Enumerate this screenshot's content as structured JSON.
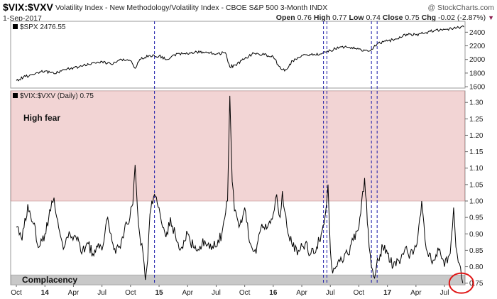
{
  "header": {
    "ticker": "$VIX:$VXV",
    "title": "Volatility Index - New Methodology/Volatility Index - CBOE S&P 500 3-Month INDX",
    "brand": "@ StockCharts.com",
    "date": "1-Sep-2017",
    "open_label": "Open",
    "open": "0.76",
    "high_label": "High",
    "high": "0.77",
    "low_label": "Low",
    "low": "0.74",
    "close_label": "Close",
    "close": "0.75",
    "chg_label": "Chg",
    "chg": "-0.02 (-2.87%)"
  },
  "colors": {
    "high_fear_band": "#f2d4d4",
    "complacency_band": "#c8c8c8",
    "line": "#000000",
    "event_lines": "#1a1aa8",
    "highlight_circle": "#e01515"
  },
  "chart_data": [
    {
      "type": "line",
      "title": "$SPX 2476.55",
      "series": [
        {
          "name": "$SPX",
          "x": [
            2013.75,
            2013.83,
            2013.92,
            2014.0,
            2014.08,
            2014.17,
            2014.25,
            2014.33,
            2014.42,
            2014.5,
            2014.58,
            2014.67,
            2014.75,
            2014.79,
            2014.83,
            2014.92,
            2015.0,
            2015.08,
            2015.17,
            2015.25,
            2015.33,
            2015.42,
            2015.5,
            2015.58,
            2015.62,
            2015.67,
            2015.75,
            2015.83,
            2015.92,
            2016.0,
            2016.05,
            2016.1,
            2016.17,
            2016.25,
            2016.33,
            2016.42,
            2016.5,
            2016.58,
            2016.67,
            2016.75,
            2016.83,
            2016.88,
            2016.92,
            2017.0,
            2017.08,
            2017.17,
            2017.25,
            2017.33,
            2017.42,
            2017.5,
            2017.58,
            2017.67
          ],
          "values": [
            1690,
            1750,
            1800,
            1830,
            1790,
            1850,
            1880,
            1900,
            1950,
            1970,
            1930,
            2000,
            1980,
            1870,
            2000,
            2060,
            2050,
            2000,
            2090,
            2080,
            2110,
            2100,
            2080,
            2100,
            1890,
            1920,
            2010,
            2090,
            2070,
            2040,
            1900,
            1830,
            1980,
            2060,
            2070,
            2080,
            2130,
            2180,
            2175,
            2150,
            2120,
            2180,
            2240,
            2270,
            2300,
            2370,
            2360,
            2390,
            2430,
            2440,
            2460,
            2476
          ]
        }
      ],
      "y_ticks": [
        1600,
        1800,
        2000,
        2200,
        2400
      ],
      "ylim": [
        1580,
        2560
      ]
    },
    {
      "type": "line",
      "title": "$VIX:$VXV (Daily) 0.75",
      "series": [
        {
          "name": "$VIX:$VXV",
          "x": [
            2013.75,
            2013.8,
            2013.85,
            2013.9,
            2013.95,
            2014.0,
            2014.05,
            2014.08,
            2014.12,
            2014.17,
            2014.22,
            2014.28,
            2014.33,
            2014.38,
            2014.42,
            2014.46,
            2014.5,
            2014.55,
            2014.58,
            2014.62,
            2014.67,
            2014.72,
            2014.77,
            2014.79,
            2014.81,
            2014.83,
            2014.86,
            2014.88,
            2014.9,
            2014.92,
            2014.96,
            2015.0,
            2015.03,
            2015.06,
            2015.1,
            2015.15,
            2015.2,
            2015.25,
            2015.3,
            2015.35,
            2015.4,
            2015.45,
            2015.5,
            2015.55,
            2015.6,
            2015.62,
            2015.64,
            2015.66,
            2015.7,
            2015.75,
            2015.8,
            2015.85,
            2015.9,
            2015.95,
            2016.0,
            2016.03,
            2016.06,
            2016.08,
            2016.1,
            2016.13,
            2016.17,
            2016.22,
            2016.28,
            2016.33,
            2016.38,
            2016.42,
            2016.46,
            2016.48,
            2016.5,
            2016.52,
            2016.55,
            2016.6,
            2016.65,
            2016.7,
            2016.75,
            2016.8,
            2016.84,
            2016.86,
            2016.88,
            2016.92,
            2016.96,
            2017.0,
            2017.05,
            2017.1,
            2017.15,
            2017.2,
            2017.25,
            2017.3,
            2017.33,
            2017.36,
            2017.4,
            2017.45,
            2017.5,
            2017.55,
            2017.58,
            2017.6,
            2017.63,
            2017.66
          ],
          "values": [
            0.92,
            0.88,
            0.99,
            0.93,
            0.86,
            0.9,
            0.97,
            1.01,
            0.92,
            0.86,
            0.9,
            0.88,
            0.85,
            0.87,
            0.84,
            0.86,
            0.85,
            0.95,
            0.9,
            0.84,
            0.88,
            0.93,
            0.99,
            1.11,
            0.98,
            0.9,
            0.84,
            0.76,
            0.82,
            0.96,
            1.02,
            0.98,
            0.92,
            0.89,
            0.95,
            0.88,
            0.86,
            0.9,
            0.86,
            0.85,
            0.88,
            0.87,
            0.86,
            0.9,
            1.0,
            1.32,
            1.06,
            0.97,
            0.92,
            0.98,
            0.87,
            0.84,
            0.93,
            0.92,
            0.96,
            1.02,
            0.95,
            1.03,
            0.97,
            0.9,
            0.86,
            0.85,
            0.87,
            0.84,
            0.86,
            0.9,
            0.97,
            1.05,
            0.85,
            0.78,
            0.8,
            0.82,
            0.84,
            0.88,
            0.92,
            1.07,
            0.86,
            0.8,
            0.77,
            0.82,
            0.86,
            0.84,
            0.8,
            0.82,
            0.85,
            0.84,
            0.86,
            1.0,
            0.88,
            0.83,
            0.82,
            0.85,
            0.8,
            0.84,
            0.98,
            0.86,
            0.81,
            0.75
          ]
        }
      ],
      "y_ticks": [
        0.75,
        0.8,
        0.85,
        0.9,
        0.95,
        1.0,
        1.05,
        1.1,
        1.15,
        1.2,
        1.25,
        1.3
      ],
      "ylim": [
        0.745,
        1.335
      ],
      "bands": [
        {
          "label": "High fear",
          "from": 1.0,
          "to": 1.335
        },
        {
          "label": "Complacency",
          "from": 0.745,
          "to": 0.775
        }
      ],
      "x_ticks": [
        "Oct",
        "14",
        "Apr",
        "Jul",
        "Oct",
        "15",
        "Apr",
        "Jul",
        "Oct",
        "16",
        "Apr",
        "Jul",
        "Oct",
        "17",
        "Apr",
        "Jul"
      ],
      "x_tick_values": [
        2013.75,
        2014.0,
        2014.25,
        2014.5,
        2014.75,
        2015.0,
        2015.25,
        2015.5,
        2015.75,
        2016.0,
        2016.25,
        2016.5,
        2016.75,
        2017.0,
        2017.25,
        2017.5
      ],
      "event_lines": [
        2014.96,
        2016.44,
        2016.47,
        2016.86,
        2016.91
      ],
      "highlight": {
        "x": 2017.66,
        "y": 0.75
      }
    }
  ]
}
